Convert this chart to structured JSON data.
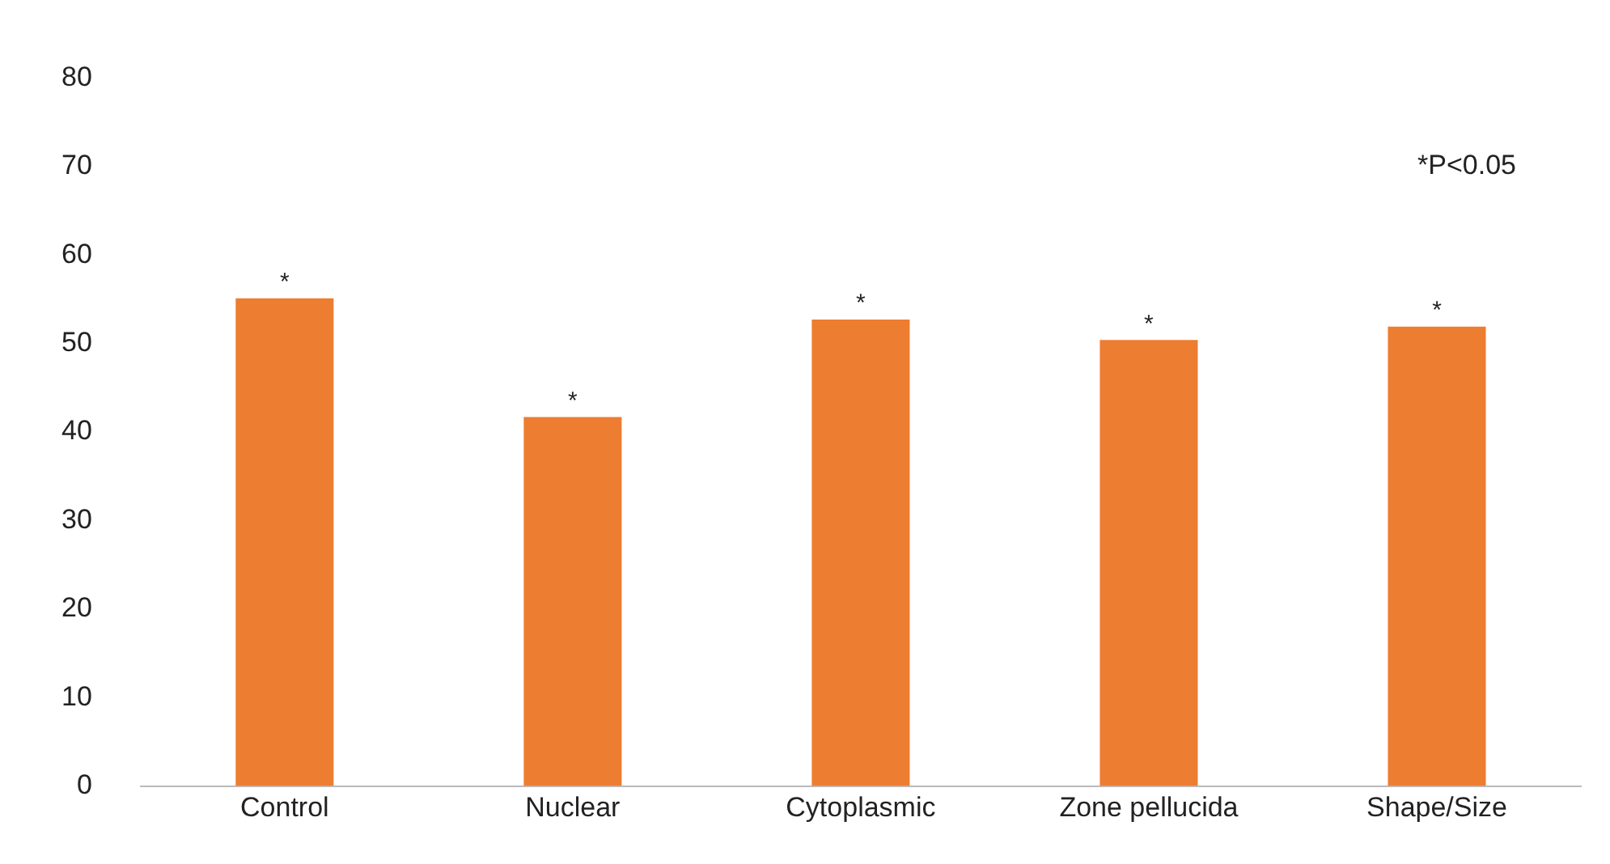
{
  "chart_data": {
    "type": "bar",
    "categories": [
      "Control",
      "Nuclear",
      "Cytoplasmic",
      "Zone pellucida",
      "Shape/Size"
    ],
    "values": [
      55.1,
      41.7,
      52.7,
      50.4,
      51.9
    ],
    "color": "#ed7d31",
    "ylim": [
      0,
      80
    ],
    "yticks": [
      0,
      10,
      20,
      30,
      40,
      50,
      60,
      70,
      80
    ],
    "grid": false,
    "legend": false,
    "annotations": [
      {
        "text": "*",
        "x": "Control",
        "y": 55.1
      },
      {
        "text": "*",
        "x": "Nuclear",
        "y": 41.7
      },
      {
        "text": "*",
        "x": "Cytoplasmic",
        "y": 52.7
      },
      {
        "text": "*",
        "x": "Zone pellucida",
        "y": 50.4
      },
      {
        "text": "*",
        "x": "Shape/Size",
        "y": 51.9
      },
      "*P<0.05"
    ]
  }
}
